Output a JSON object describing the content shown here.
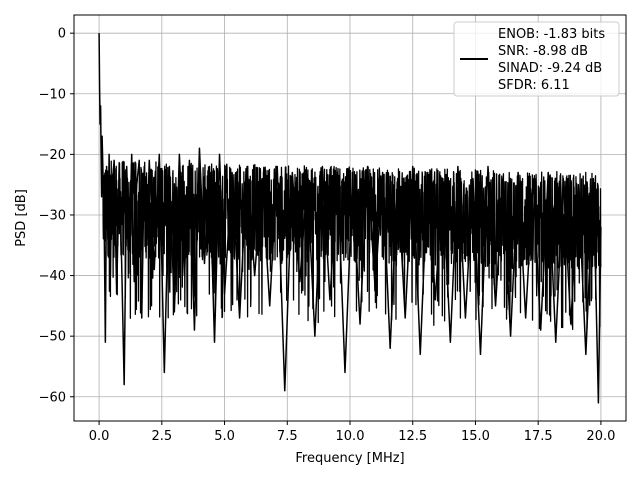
{
  "chart_data": {
    "type": "line",
    "title": "",
    "xlabel": "Frequency [MHz]",
    "ylabel": "PSD [dB]",
    "xlim": [
      -1.0,
      21.0
    ],
    "ylim": [
      -64.0,
      3.0
    ],
    "grid": true,
    "legend_placement": "top-right",
    "line_color": "#000000",
    "x_ticks": [
      0.0,
      2.5,
      5.0,
      7.5,
      10.0,
      12.5,
      15.0,
      17.5,
      20.0
    ],
    "x_tick_labels": [
      "0.0",
      "2.5",
      "5.0",
      "7.5",
      "10.0",
      "12.5",
      "15.0",
      "17.5",
      "20.0"
    ],
    "y_ticks": [
      0,
      -10,
      -20,
      -30,
      -40,
      -50,
      -60
    ],
    "y_tick_labels": [
      "0",
      "−10",
      "−20",
      "−30",
      "−40",
      "−50",
      "−60"
    ],
    "legend_entries": [
      "ENOB: -1.83 bits",
      "SNR: -8.98 dB",
      "SINAD: -9.24 dB",
      "SFDR: 6.11"
    ],
    "series": [
      {
        "x": [
          0.0,
          0.02,
          0.04,
          0.06,
          0.08,
          0.1,
          0.12,
          0.16,
          0.2,
          0.25,
          0.3,
          0.35,
          0.4,
          0.45,
          0.5,
          0.6,
          0.7,
          0.8,
          0.9,
          1.0,
          1.1,
          1.2,
          1.3,
          1.4,
          1.5,
          1.6,
          1.7,
          1.8,
          1.9,
          2.0,
          2.2,
          2.4,
          2.6,
          2.8,
          3.0,
          3.2,
          3.4,
          3.6,
          3.8,
          4.0,
          4.2,
          4.4,
          4.6,
          4.8,
          5.0,
          5.3,
          5.6,
          5.9,
          6.2,
          6.5,
          6.8,
          7.1,
          7.4,
          7.7,
          8.0,
          8.3,
          8.6,
          8.9,
          9.2,
          9.5,
          9.8,
          10.1,
          10.4,
          10.7,
          11.0,
          11.3,
          11.6,
          11.9,
          12.2,
          12.5,
          12.8,
          13.1,
          13.4,
          13.7,
          14.0,
          14.3,
          14.6,
          14.9,
          15.2,
          15.5,
          15.8,
          16.1,
          16.4,
          16.7,
          17.0,
          17.3,
          17.6,
          17.9,
          18.2,
          18.5,
          18.8,
          19.1,
          19.4,
          19.7,
          19.9,
          20.0
        ],
        "y": [
          0.0,
          -9.0,
          -15.0,
          -12.0,
          -20.0,
          -27.0,
          -17.0,
          -24.0,
          -30.0,
          -51.0,
          -22.0,
          -34.0,
          -20.0,
          -40.0,
          -26.0,
          -21.0,
          -43.0,
          -23.0,
          -38.0,
          -58.0,
          -22.0,
          -36.0,
          -20.0,
          -41.0,
          -25.0,
          -21.0,
          -47.0,
          -22.0,
          -35.0,
          -21.0,
          -39.0,
          -20.0,
          -56.0,
          -22.0,
          -46.0,
          -20.0,
          -40.0,
          -21.0,
          -49.0,
          -19.0,
          -38.0,
          -22.0,
          -51.0,
          -20.0,
          -43.0,
          -23.0,
          -47.0,
          -22.0,
          -40.0,
          -24.0,
          -45.0,
          -22.0,
          -59.0,
          -23.0,
          -41.0,
          -24.0,
          -50.0,
          -22.0,
          -44.0,
          -23.0,
          -56.0,
          -24.0,
          -48.0,
          -22.0,
          -42.0,
          -23.0,
          -52.0,
          -24.0,
          -47.0,
          -22.0,
          -53.0,
          -23.0,
          -44.0,
          -24.0,
          -51.0,
          -22.0,
          -47.0,
          -24.0,
          -53.0,
          -22.0,
          -45.0,
          -24.0,
          -50.0,
          -23.0,
          -47.0,
          -24.0,
          -49.0,
          -23.0,
          -51.0,
          -24.0,
          -48.0,
          -25.0,
          -53.0,
          -24.0,
          -61.0,
          -32.0
        ]
      }
    ]
  }
}
